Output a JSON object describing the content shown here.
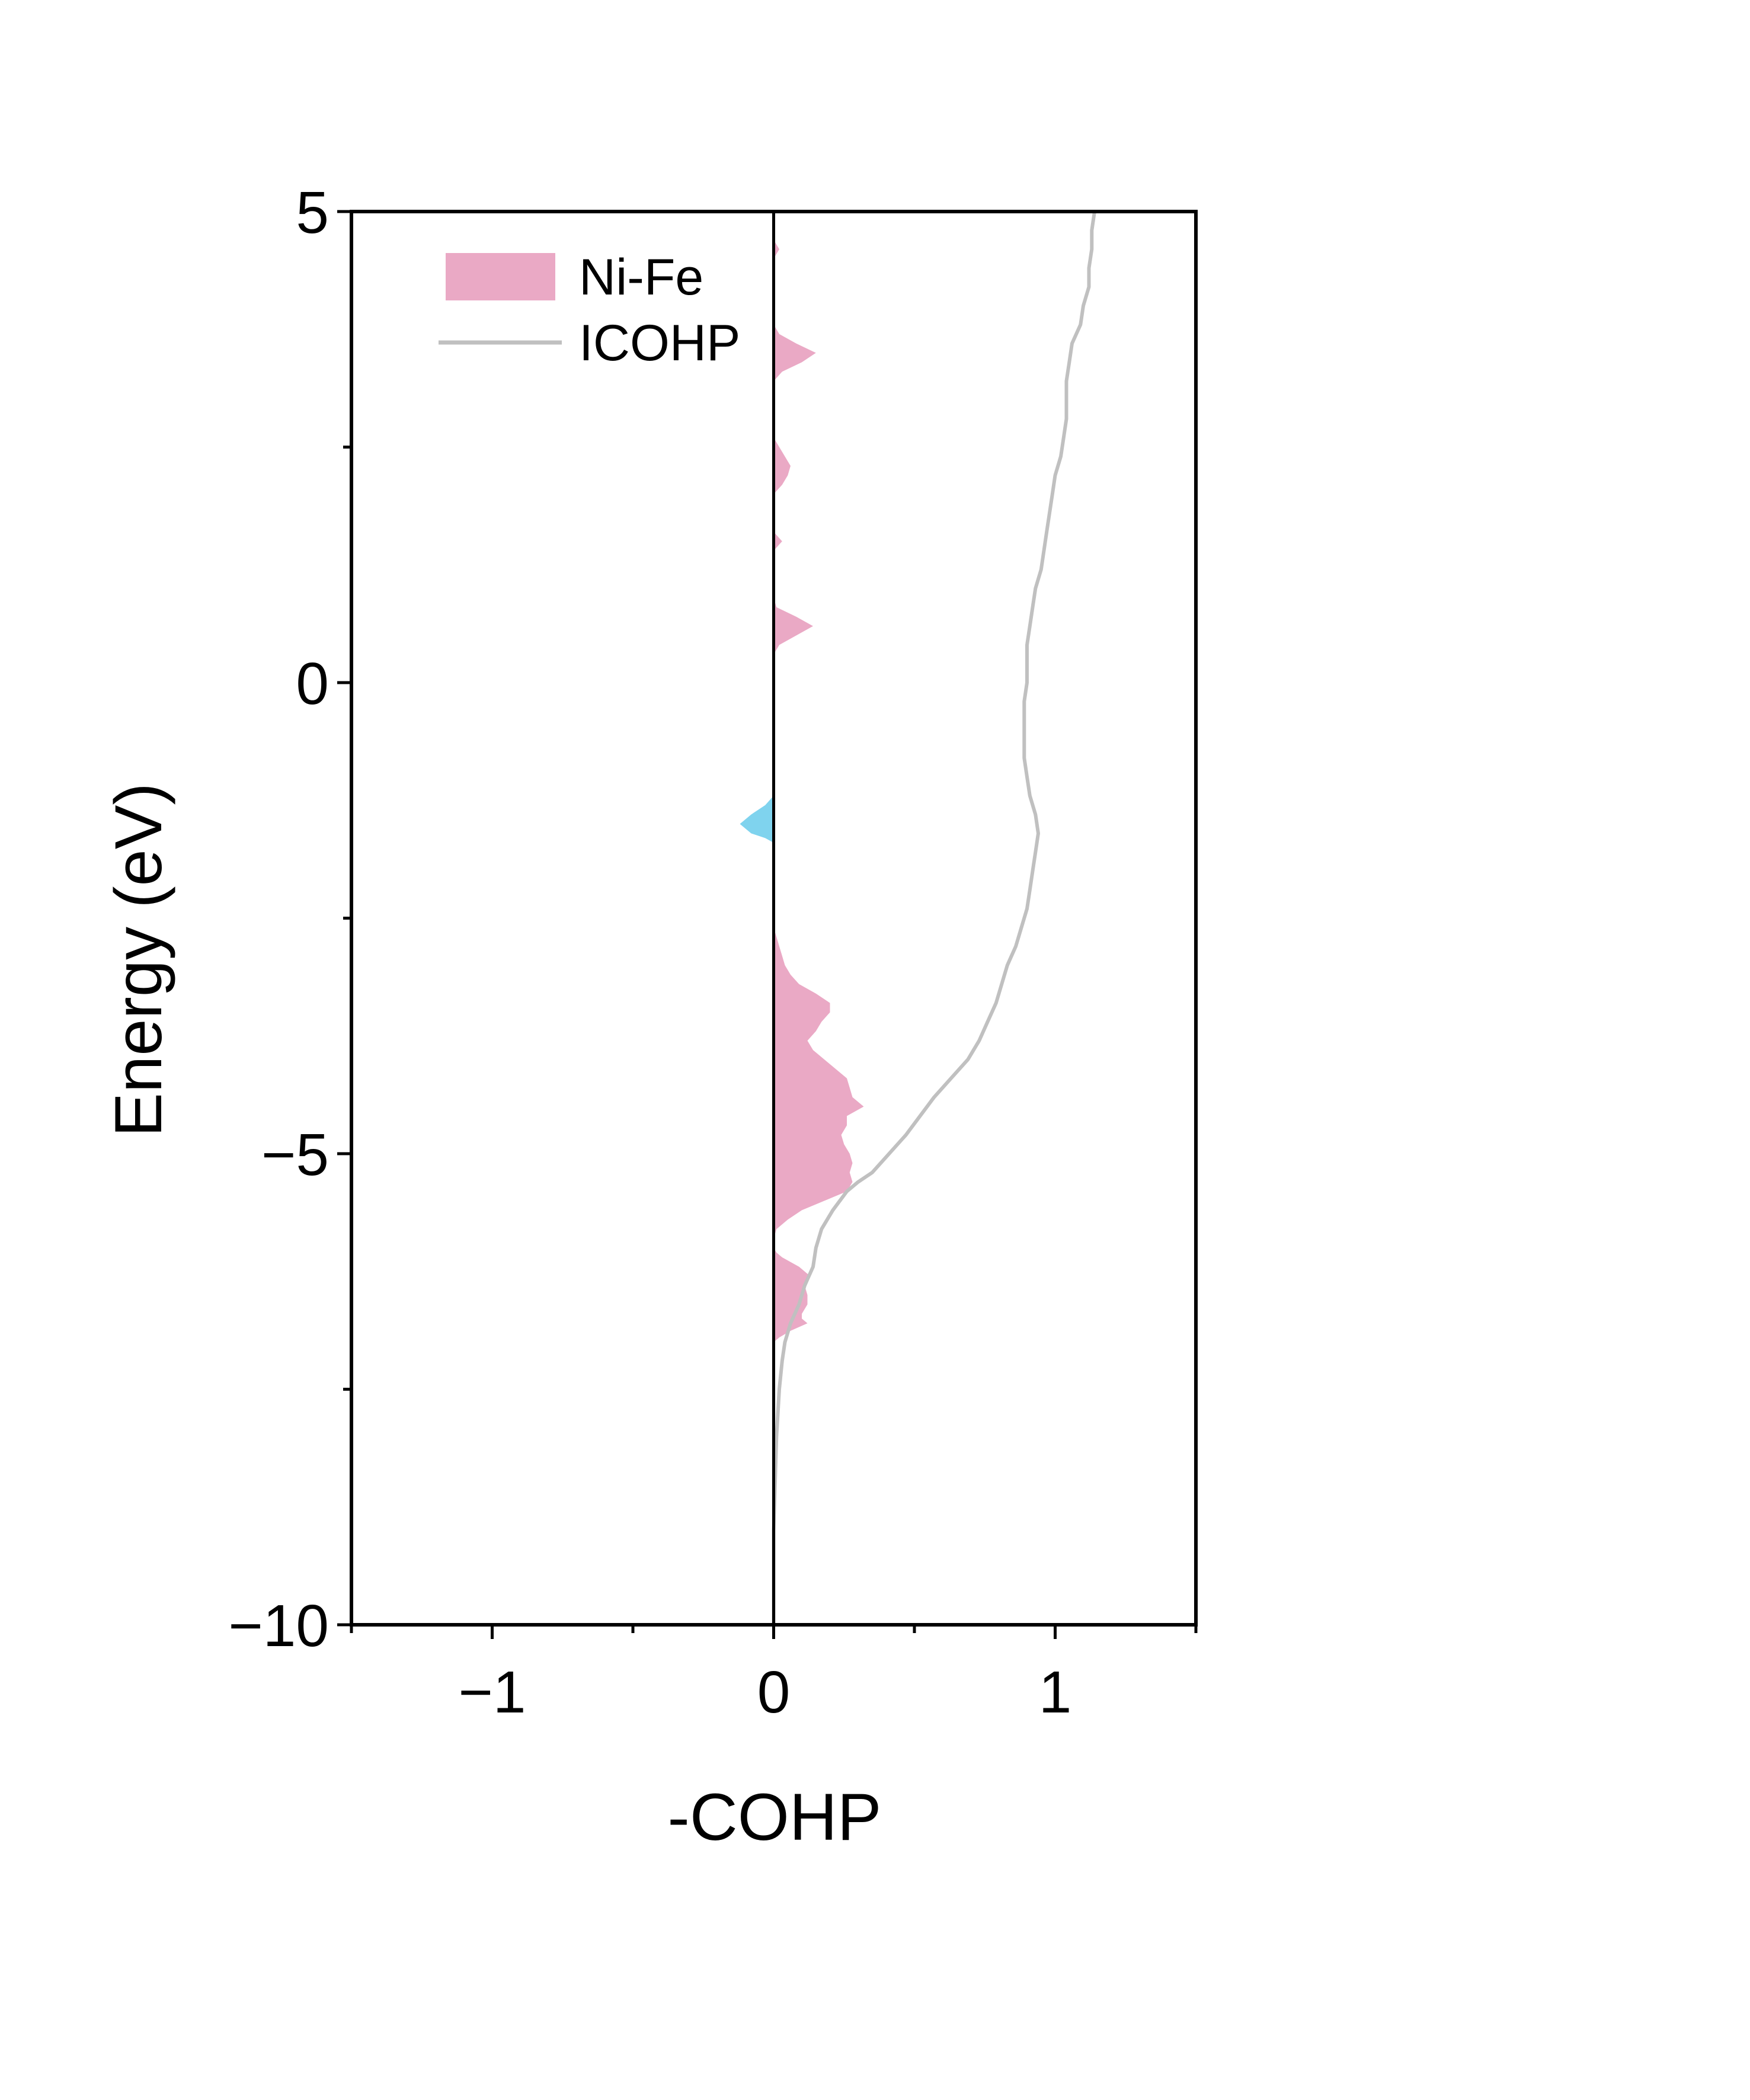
{
  "chart_data": {
    "type": "area",
    "title": "",
    "xlabel": "-COHP",
    "ylabel": "Energy (eV)",
    "xlim": [
      -1.5,
      1.5
    ],
    "ylim": [
      -10,
      5
    ],
    "orientation": "horizontal-values",
    "x_ticks": [
      {
        "value": -1,
        "label": "−1"
      },
      {
        "value": 0,
        "label": "0"
      },
      {
        "value": 1,
        "label": "1"
      }
    ],
    "x_minor_ticks": [
      -1.5,
      -0.5,
      0.5,
      1.5
    ],
    "y_ticks": [
      {
        "value": 5,
        "label": "5"
      },
      {
        "value": 0,
        "label": "0"
      },
      {
        "value": -5,
        "label": "−5"
      },
      {
        "value": -10,
        "label": "−10"
      }
    ],
    "y_minor_ticks": [
      2.5,
      -2.5,
      -7.5
    ],
    "grid": false,
    "legend_position": "top-left",
    "zero_line": 0,
    "series": [
      {
        "name": "Ni-Fe",
        "kind": "filled-area",
        "color_positive": "#eaa9c5",
        "color_negative": "#7fd3ee",
        "energy": [
          -10,
          -7.0,
          -6.95,
          -6.88,
          -6.8,
          -6.75,
          -6.7,
          -6.6,
          -6.5,
          -6.4,
          -6.3,
          -6.2,
          -6.1,
          -6.05,
          -6.0,
          -5.95,
          -5.9,
          -5.8,
          -5.7,
          -5.6,
          -5.5,
          -5.4,
          -5.3,
          -5.2,
          -5.1,
          -5.0,
          -4.9,
          -4.8,
          -4.7,
          -4.6,
          -4.5,
          -4.4,
          -4.3,
          -4.2,
          -4.1,
          -4.0,
          -3.9,
          -3.8,
          -3.7,
          -3.6,
          -3.5,
          -3.4,
          -3.3,
          -3.2,
          -3.1,
          -3.0,
          -2.9,
          -2.8,
          -2.7,
          -2.6,
          -2.5,
          -2.4,
          -2.3,
          -2.2,
          -2.1,
          -2.0,
          -1.9,
          -1.8,
          -1.7,
          -1.65,
          -1.6,
          -1.5,
          -1.4,
          -1.3,
          -1.2,
          -1.1,
          -1.0,
          -0.9,
          -0.8,
          -0.7,
          -0.6,
          -0.5,
          -0.4,
          -0.3,
          -0.2,
          -0.1,
          0.0,
          0.1,
          0.2,
          0.3,
          0.4,
          0.5,
          0.6,
          0.7,
          0.8,
          0.9,
          1.0,
          1.1,
          1.2,
          1.3,
          1.4,
          1.5,
          1.6,
          1.7,
          1.8,
          1.9,
          2.0,
          2.1,
          2.2,
          2.3,
          2.4,
          2.5,
          2.6,
          2.7,
          2.8,
          2.9,
          3.0,
          3.1,
          3.2,
          3.3,
          3.4,
          3.5,
          3.6,
          3.7,
          3.8,
          3.9,
          4.0,
          4.1,
          4.2,
          4.3,
          4.4,
          4.5,
          4.6,
          4.7,
          4.8,
          4.9,
          5.0
        ],
        "cohp": [
          0,
          0,
          0.02,
          0.06,
          0.12,
          0.1,
          0.1,
          0.12,
          0.12,
          0.11,
          0.13,
          0.09,
          0.03,
          0.01,
          0.0,
          0.0,
          0.0,
          0.01,
          0.05,
          0.1,
          0.18,
          0.26,
          0.28,
          0.27,
          0.28,
          0.27,
          0.25,
          0.24,
          0.26,
          0.26,
          0.32,
          0.28,
          0.27,
          0.26,
          0.22,
          0.18,
          0.14,
          0.12,
          0.15,
          0.17,
          0.2,
          0.2,
          0.15,
          0.09,
          0.06,
          0.04,
          0.03,
          0.02,
          0.01,
          0.0,
          0.0,
          0.0,
          0.0,
          0.0,
          0.0,
          0.0,
          0.0,
          0.0,
          0.0,
          -0.03,
          -0.08,
          -0.12,
          -0.08,
          -0.03,
          0.0,
          0.0,
          0.0,
          0.0,
          0.0,
          0.0,
          0.0,
          0.0,
          0.0,
          0.0,
          0.0,
          0.0,
          0.0,
          0.0,
          0.0,
          0.0,
          0.02,
          0.08,
          0.14,
          0.08,
          0.01,
          0.0,
          0.0,
          0.0,
          0.0,
          0.0,
          0.0,
          0.03,
          0.0,
          0.0,
          0.0,
          0.0,
          0.0,
          0.03,
          0.05,
          0.06,
          0.04,
          0.02,
          0.0,
          0.0,
          0.0,
          0.0,
          0.0,
          0.0,
          0.0,
          0.03,
          0.1,
          0.15,
          0.08,
          0.02,
          0.0,
          0.0,
          0.0,
          0.0,
          0.0,
          0.0,
          0.0,
          0.0,
          0.02,
          0.0,
          0.0,
          0.0,
          0.0,
          0.0,
          0.0
        ]
      },
      {
        "name": "ICOHP",
        "kind": "line",
        "color": "#c0c0c0",
        "energy": [
          -10,
          -9.0,
          -8.0,
          -7.5,
          -7.2,
          -7.0,
          -6.8,
          -6.6,
          -6.4,
          -6.2,
          -6.0,
          -5.8,
          -5.6,
          -5.4,
          -5.3,
          -5.2,
          -5.0,
          -4.8,
          -4.6,
          -4.4,
          -4.2,
          -4.0,
          -3.8,
          -3.6,
          -3.4,
          -3.2,
          -3.0,
          -2.8,
          -2.6,
          -2.4,
          -2.2,
          -2.0,
          -1.8,
          -1.6,
          -1.4,
          -1.2,
          -1.0,
          -0.8,
          -0.6,
          -0.4,
          -0.2,
          0.0,
          0.2,
          0.4,
          0.6,
          0.8,
          1.0,
          1.2,
          1.4,
          1.6,
          1.8,
          2.0,
          2.2,
          2.4,
          2.6,
          2.8,
          3.0,
          3.2,
          3.4,
          3.6,
          3.8,
          4.0,
          4.2,
          4.4,
          4.6,
          4.8,
          5.0
        ],
        "cohp": [
          0.0,
          0.0,
          0.01,
          0.02,
          0.03,
          0.04,
          0.06,
          0.09,
          0.11,
          0.14,
          0.15,
          0.17,
          0.21,
          0.26,
          0.3,
          0.35,
          0.41,
          0.47,
          0.52,
          0.57,
          0.63,
          0.69,
          0.73,
          0.76,
          0.79,
          0.81,
          0.83,
          0.86,
          0.88,
          0.9,
          0.91,
          0.92,
          0.93,
          0.94,
          0.93,
          0.91,
          0.9,
          0.89,
          0.89,
          0.89,
          0.89,
          0.9,
          0.9,
          0.9,
          0.91,
          0.92,
          0.93,
          0.95,
          0.96,
          0.97,
          0.98,
          0.99,
          1.0,
          1.02,
          1.03,
          1.04,
          1.04,
          1.04,
          1.05,
          1.06,
          1.09,
          1.1,
          1.12,
          1.12,
          1.13,
          1.13,
          1.14
        ]
      }
    ],
    "legend": [
      {
        "label": "Ni-Fe",
        "swatch": "box",
        "color": "#eaa9c5"
      },
      {
        "label": "ICOHP",
        "swatch": "line",
        "color": "#c0c0c0"
      }
    ]
  }
}
